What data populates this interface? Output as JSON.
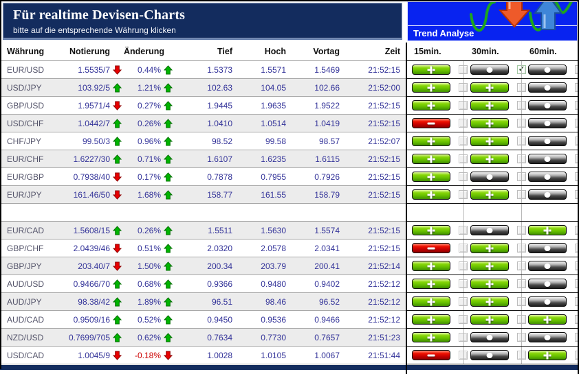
{
  "header": {
    "title": "Für realtime Devisen-Charts",
    "subtitle": "bitte auf die entsprechende Währung klicken"
  },
  "trend_panel": {
    "title": "Trend Analyse",
    "columns": [
      "15min.",
      "30min.",
      "60min."
    ]
  },
  "table": {
    "columns": [
      "Währung",
      "Notierung",
      "Änderung",
      "Tief",
      "Hoch",
      "Vortag",
      "Zeit"
    ],
    "rows": [
      {
        "pair": "EUR/USD",
        "quote": "1.5535/7",
        "quote_dir": "down",
        "change": "0.44%",
        "change_dir": "up",
        "tief": "1.5373",
        "hoch": "1.5571",
        "vortag": "1.5469",
        "zeit": "21:52:15",
        "trend": [
          "plus",
          "neutral",
          "neutral"
        ],
        "checked": [
          false,
          true,
          false
        ]
      },
      {
        "pair": "USD/JPY",
        "quote": "103.92/5",
        "quote_dir": "up",
        "change": "1.21%",
        "change_dir": "up",
        "tief": "102.63",
        "hoch": "104.05",
        "vortag": "102.66",
        "zeit": "21:52:00",
        "trend": [
          "plus",
          "plus",
          "neutral"
        ],
        "checked": [
          false,
          false,
          false
        ]
      },
      {
        "pair": "GBP/USD",
        "quote": "1.9571/4",
        "quote_dir": "down",
        "change": "0.27%",
        "change_dir": "up",
        "tief": "1.9445",
        "hoch": "1.9635",
        "vortag": "1.9522",
        "zeit": "21:52:15",
        "trend": [
          "plus",
          "plus",
          "neutral"
        ],
        "checked": [
          false,
          false,
          false
        ]
      },
      {
        "pair": "USD/CHF",
        "quote": "1.0442/7",
        "quote_dir": "up",
        "change": "0.26%",
        "change_dir": "up",
        "tief": "1.0410",
        "hoch": "1.0514",
        "vortag": "1.0419",
        "zeit": "21:52:15",
        "trend": [
          "minus",
          "plus",
          "neutral"
        ],
        "checked": [
          false,
          false,
          false
        ]
      },
      {
        "pair": "CHF/JPY",
        "quote": "99.50/3",
        "quote_dir": "up",
        "change": "0.96%",
        "change_dir": "up",
        "tief": "98.52",
        "hoch": "99.58",
        "vortag": "98.57",
        "zeit": "21:52:07",
        "trend": [
          "plus",
          "plus",
          "neutral"
        ],
        "checked": [
          false,
          false,
          false
        ]
      },
      {
        "pair": "EUR/CHF",
        "quote": "1.6227/30",
        "quote_dir": "up",
        "change": "0.71%",
        "change_dir": "up",
        "tief": "1.6107",
        "hoch": "1.6235",
        "vortag": "1.6115",
        "zeit": "21:52:15",
        "trend": [
          "plus",
          "plus",
          "neutral"
        ],
        "checked": [
          false,
          false,
          false
        ]
      },
      {
        "pair": "EUR/GBP",
        "quote": "0.7938/40",
        "quote_dir": "down",
        "change": "0.17%",
        "change_dir": "up",
        "tief": "0.7878",
        "hoch": "0.7955",
        "vortag": "0.7926",
        "zeit": "21:52:15",
        "trend": [
          "plus",
          "neutral",
          "neutral"
        ],
        "checked": [
          false,
          false,
          false
        ]
      },
      {
        "pair": "EUR/JPY",
        "quote": "161.46/50",
        "quote_dir": "down",
        "change": "1.68%",
        "change_dir": "up",
        "tief": "158.77",
        "hoch": "161.55",
        "vortag": "158.79",
        "zeit": "21:52:15",
        "trend": [
          "plus",
          "plus",
          "neutral"
        ],
        "checked": [
          false,
          false,
          false
        ]
      },
      {
        "gap": true
      },
      {
        "pair": "EUR/CAD",
        "quote": "1.5608/15",
        "quote_dir": "up",
        "change": "0.26%",
        "change_dir": "up",
        "tief": "1.5511",
        "hoch": "1.5630",
        "vortag": "1.5574",
        "zeit": "21:52:15",
        "trend": [
          "plus",
          "neutral",
          "plus"
        ],
        "checked": [
          false,
          false,
          false
        ]
      },
      {
        "pair": "GBP/CHF",
        "quote": "2.0439/46",
        "quote_dir": "down",
        "change": "0.51%",
        "change_dir": "up",
        "tief": "2.0320",
        "hoch": "2.0578",
        "vortag": "2.0341",
        "zeit": "21:52:15",
        "trend": [
          "minus",
          "plus",
          "neutral"
        ],
        "checked": [
          false,
          false,
          false
        ]
      },
      {
        "pair": "GBP/JPY",
        "quote": "203.40/7",
        "quote_dir": "down",
        "change": "1.50%",
        "change_dir": "up",
        "tief": "200.34",
        "hoch": "203.79",
        "vortag": "200.41",
        "zeit": "21:52:14",
        "trend": [
          "plus",
          "plus",
          "neutral"
        ],
        "checked": [
          false,
          false,
          false
        ]
      },
      {
        "pair": "AUD/USD",
        "quote": "0.9466/70",
        "quote_dir": "up",
        "change": "0.68%",
        "change_dir": "up",
        "tief": "0.9366",
        "hoch": "0.9480",
        "vortag": "0.9402",
        "zeit": "21:52:12",
        "trend": [
          "plus",
          "plus",
          "neutral"
        ],
        "checked": [
          false,
          false,
          false
        ]
      },
      {
        "pair": "AUD/JPY",
        "quote": "98.38/42",
        "quote_dir": "up",
        "change": "1.89%",
        "change_dir": "up",
        "tief": "96.51",
        "hoch": "98.46",
        "vortag": "96.52",
        "zeit": "21:52:12",
        "trend": [
          "plus",
          "plus",
          "neutral"
        ],
        "checked": [
          false,
          false,
          false
        ]
      },
      {
        "pair": "AUD/CAD",
        "quote": "0.9509/16",
        "quote_dir": "up",
        "change": "0.52%",
        "change_dir": "up",
        "tief": "0.9450",
        "hoch": "0.9536",
        "vortag": "0.9466",
        "zeit": "21:52:12",
        "trend": [
          "plus",
          "plus",
          "plus"
        ],
        "checked": [
          false,
          false,
          false
        ]
      },
      {
        "pair": "NZD/USD",
        "quote": "0.7699/705",
        "quote_dir": "up",
        "change": "0.62%",
        "change_dir": "up",
        "tief": "0.7634",
        "hoch": "0.7730",
        "vortag": "0.7657",
        "zeit": "21:51:23",
        "trend": [
          "plus",
          "neutral",
          "neutral"
        ],
        "checked": [
          false,
          false,
          false
        ]
      },
      {
        "pair": "USD/CAD",
        "quote": "1.0045/9",
        "quote_dir": "down",
        "change": "-0.18%",
        "change_dir": "down",
        "tief": "1.0028",
        "hoch": "1.0105",
        "vortag": "1.0067",
        "zeit": "21:51:44",
        "trend": [
          "minus",
          "neutral",
          "plus"
        ],
        "checked": [
          false,
          false,
          false
        ]
      }
    ]
  },
  "colors": {
    "header_navy": "#132C5E",
    "panel_blue": "#0823F0",
    "value_text": "#333399",
    "pair_text": "#54546A",
    "negative_text": "#CC0000",
    "up_arrow": "#00B400",
    "up_arrow_border": "#007000",
    "down_arrow": "#E80000",
    "down_arrow_border": "#8E0000",
    "row_alt": "#ECECEC"
  }
}
